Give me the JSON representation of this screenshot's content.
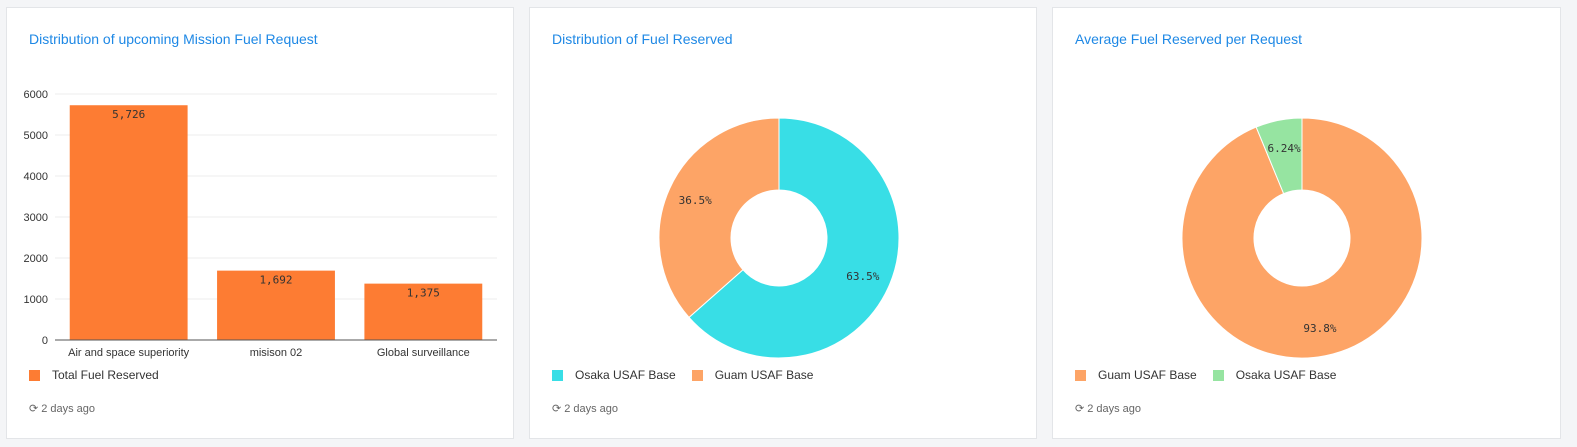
{
  "colors": {
    "bar": "#fd7c33",
    "osaka": "#38dee6",
    "guam": "#fda466",
    "osaka_green": "#96e4a1",
    "title": "#1e88e5"
  },
  "updated_text": "2 days ago",
  "chart_data": [
    {
      "type": "bar",
      "title": "Distribution of upcoming Mission Fuel Request",
      "categories": [
        "Air and space superiority",
        "misison 02",
        "Global surveillance"
      ],
      "series": [
        {
          "name": "Total Fuel Reserved",
          "values": [
            5726,
            1692,
            1375
          ]
        }
      ],
      "value_labels": [
        "5,726",
        "1,692",
        "1,375"
      ],
      "ylim": [
        0,
        6000
      ],
      "yticks": [
        "0",
        "1000",
        "2000",
        "3000",
        "4000",
        "5000",
        "6000"
      ],
      "grid": true,
      "legend": "bottom-left"
    },
    {
      "type": "pie",
      "donut": true,
      "title": "Distribution of Fuel Reserved",
      "slices": [
        {
          "name": "Osaka USAF Base",
          "value": 63.5,
          "label": "63.5%",
          "color": "#38dee6"
        },
        {
          "name": "Guam USAF Base",
          "value": 36.5,
          "label": "36.5%",
          "color": "#fda466"
        }
      ],
      "legend": "bottom-left"
    },
    {
      "type": "pie",
      "donut": true,
      "title": "Average Fuel Reserved per Request",
      "slices": [
        {
          "name": "Guam USAF Base",
          "value": 93.8,
          "label": "93.8%",
          "color": "#fda466"
        },
        {
          "name": "Osaka USAF Base",
          "value": 6.24,
          "label": "6.24%",
          "color": "#96e4a1"
        }
      ],
      "legend": "bottom-left"
    }
  ]
}
